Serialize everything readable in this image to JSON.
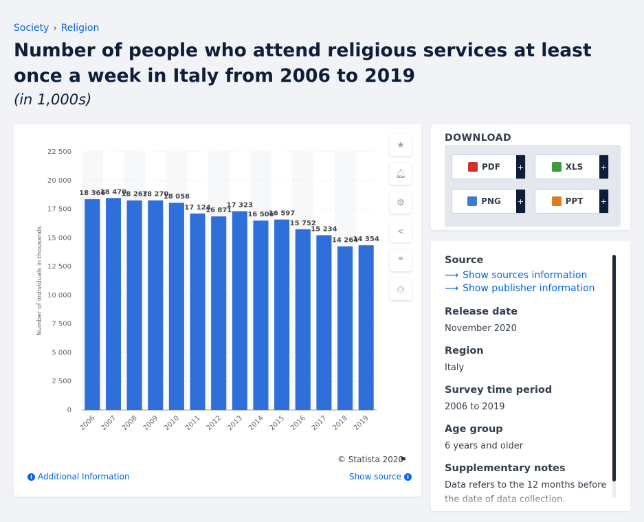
{
  "breadcrumb": {
    "items": [
      "Society",
      "Religion"
    ],
    "separator": "›"
  },
  "title": "Number of people who attend religious services at least once a week in Italy from 2006 to 2019",
  "subtitle": "(in 1,000s)",
  "chart_data": {
    "type": "bar",
    "categories": [
      "2006",
      "2007",
      "2008",
      "2009",
      "2010",
      "2011",
      "2012",
      "2013",
      "2014",
      "2015",
      "2016",
      "2017",
      "2018",
      "2019"
    ],
    "values": [
      18366,
      18470,
      18267,
      18270,
      18058,
      17124,
      16871,
      17323,
      16506,
      16597,
      15752,
      15234,
      14264,
      14354
    ],
    "data_labels": [
      "18 366",
      "18 470",
      "18 267",
      "18 270",
      "18 058",
      "17 124",
      "16 871",
      "17 323",
      "16 506",
      "16 597",
      "15 752",
      "15 234",
      "14 264",
      "14 354"
    ],
    "ylabel": "Number of individuals in thousands",
    "ylim": [
      0,
      22500
    ],
    "yticks": [
      0,
      2500,
      5000,
      7500,
      10000,
      12500,
      15000,
      17500,
      20000,
      22500
    ],
    "ytick_labels": [
      "0",
      "2 500",
      "5 000",
      "7 500",
      "10 000",
      "12 500",
      "15 000",
      "17 500",
      "20 000",
      "22 500"
    ],
    "bar_color": "#2e6fda",
    "grid": true
  },
  "chart_footer": {
    "copyright": "© Statista 2020",
    "additional_info": "Additional Information",
    "show_source": "Show source"
  },
  "tools": [
    "star-icon",
    "bell-icon",
    "gear-icon",
    "share-icon",
    "quote-icon",
    "print-icon"
  ],
  "download": {
    "title": "DOWNLOAD",
    "buttons": [
      {
        "label": "PDF",
        "color": "#d0312d"
      },
      {
        "label": "XLS",
        "color": "#3f9b3f"
      },
      {
        "label": "PNG",
        "color": "#3a7ad1"
      },
      {
        "label": "PPT",
        "color": "#e07b22"
      }
    ]
  },
  "info": {
    "source_heading": "Source",
    "show_sources": "Show sources information",
    "show_publisher": "Show publisher information",
    "release_date_heading": "Release date",
    "release_date": "November 2020",
    "region_heading": "Region",
    "region": "Italy",
    "survey_heading": "Survey time period",
    "survey": "2006 to 2019",
    "age_heading": "Age group",
    "age": "6 years and older",
    "notes_heading": "Supplementary notes",
    "notes": "Data refers to the 12 months before the date of data collection."
  }
}
